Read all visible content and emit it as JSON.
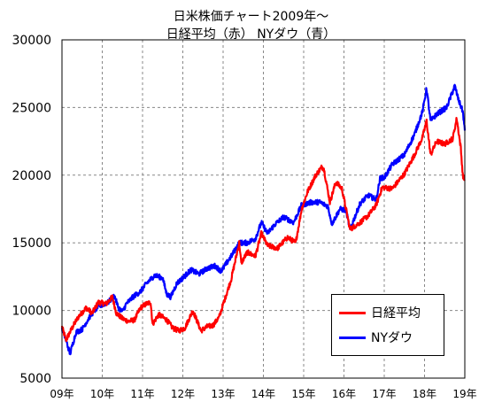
{
  "chart_data": {
    "type": "line",
    "title": "日米株価チャート2009年～",
    "subtitle": "日経平均（赤） NYダウ（青）",
    "x_ticks": [
      "09年",
      "10年",
      "11年",
      "12年",
      "13年",
      "14年",
      "15年",
      "16年",
      "17年",
      "18年",
      "19年"
    ],
    "y_ticks": [
      "30000",
      "25000",
      "20000",
      "15000",
      "10000",
      "5000"
    ],
    "ylim": [
      5000,
      30000
    ],
    "xlim": [
      2009,
      2019
    ],
    "grid": true,
    "legend_position": "bottom-right",
    "series": [
      {
        "name": "日経平均",
        "color": "#ff0000",
        "x": [
          2009.0,
          2009.1,
          2009.25,
          2009.4,
          2009.6,
          2009.75,
          2009.9,
          2010.1,
          2010.25,
          2010.35,
          2010.5,
          2010.65,
          2010.8,
          2010.95,
          2011.1,
          2011.2,
          2011.25,
          2011.4,
          2011.6,
          2011.75,
          2011.9,
          2012.05,
          2012.25,
          2012.45,
          2012.6,
          2012.75,
          2012.9,
          2013.05,
          2013.2,
          2013.4,
          2013.45,
          2013.6,
          2013.8,
          2013.95,
          2014.1,
          2014.35,
          2014.6,
          2014.8,
          2014.95,
          2015.1,
          2015.3,
          2015.45,
          2015.5,
          2015.65,
          2015.8,
          2015.95,
          2016.05,
          2016.15,
          2016.4,
          2016.6,
          2016.8,
          2016.95,
          2017.2,
          2017.5,
          2017.75,
          2017.95,
          2018.05,
          2018.15,
          2018.3,
          2018.5,
          2018.7,
          2018.8,
          2018.9,
          2018.95,
          2019.0
        ],
        "values": [
          8800,
          7800,
          8700,
          9500,
          10200,
          9800,
          10600,
          10500,
          11000,
          9800,
          9400,
          9200,
          9300,
          10200,
          10500,
          10600,
          9000,
          9700,
          9300,
          8700,
          8500,
          8700,
          10000,
          8500,
          8800,
          8900,
          9500,
          10900,
          12300,
          15000,
          13500,
          14300,
          14000,
          15700,
          14800,
          14600,
          15400,
          15000,
          17500,
          18800,
          20000,
          20600,
          20500,
          18000,
          19500,
          19000,
          17500,
          16000,
          16500,
          17000,
          17800,
          19100,
          19000,
          20100,
          21500,
          22800,
          24000,
          21500,
          22500,
          22300,
          22700,
          24200,
          22000,
          20000,
          19600
        ]
      },
      {
        "name": "NYダウ",
        "color": "#0000ff",
        "x": [
          2009.0,
          2009.1,
          2009.2,
          2009.35,
          2009.5,
          2009.7,
          2009.9,
          2010.15,
          2010.3,
          2010.4,
          2010.5,
          2010.6,
          2010.8,
          2010.95,
          2011.1,
          2011.3,
          2011.5,
          2011.6,
          2011.7,
          2011.85,
          2012.0,
          2012.2,
          2012.4,
          2012.6,
          2012.8,
          2012.95,
          2013.2,
          2013.4,
          2013.6,
          2013.8,
          2013.95,
          2014.1,
          2014.3,
          2014.5,
          2014.75,
          2014.95,
          2015.2,
          2015.4,
          2015.6,
          2015.7,
          2015.9,
          2016.05,
          2016.15,
          2016.4,
          2016.6,
          2016.8,
          2016.9,
          2017.0,
          2017.2,
          2017.5,
          2017.75,
          2017.95,
          2018.05,
          2018.15,
          2018.3,
          2018.55,
          2018.75,
          2018.85,
          2018.95,
          2019.0
        ],
        "values": [
          8700,
          7800,
          6800,
          8400,
          8600,
          9600,
          10300,
          10600,
          11100,
          10200,
          9900,
          10500,
          11100,
          11400,
          12000,
          12600,
          12400,
          11200,
          11000,
          12000,
          12400,
          13000,
          12700,
          13100,
          13300,
          12900,
          14000,
          15000,
          15000,
          15300,
          16500,
          15700,
          16400,
          16900,
          16500,
          17800,
          18000,
          18000,
          17700,
          16400,
          17500,
          17400,
          16000,
          17900,
          18500,
          18200,
          19800,
          19800,
          20800,
          21500,
          23000,
          24700,
          26400,
          24000,
          24500,
          25000,
          26600,
          25500,
          24700,
          23300
        ]
      }
    ]
  }
}
